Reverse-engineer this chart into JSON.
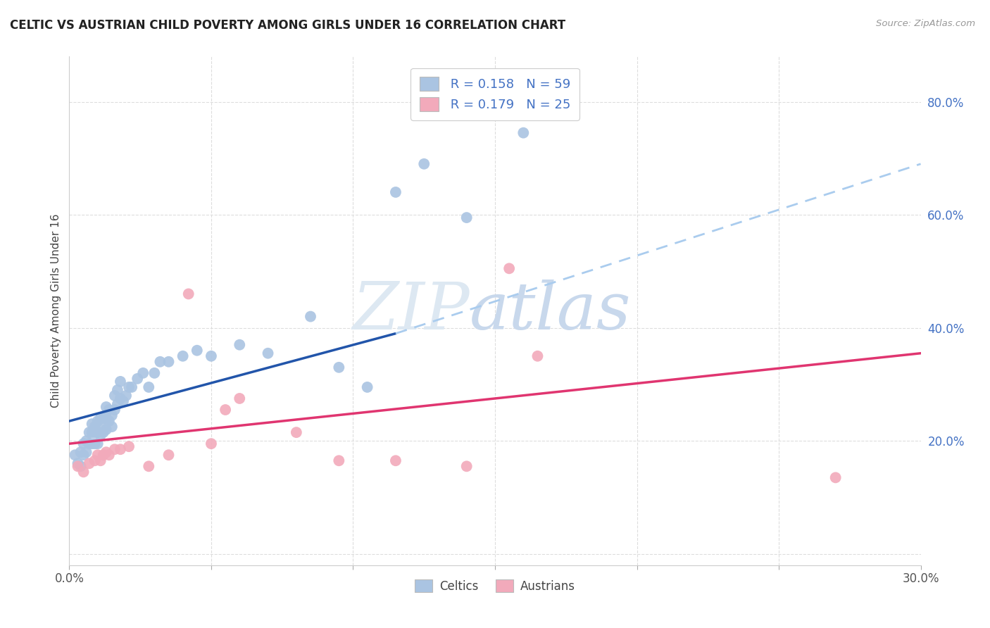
{
  "title": "CELTIC VS AUSTRIAN CHILD POVERTY AMONG GIRLS UNDER 16 CORRELATION CHART",
  "source": "Source: ZipAtlas.com",
  "ylabel": "Child Poverty Among Girls Under 16",
  "xlim": [
    0.0,
    0.3
  ],
  "ylim": [
    -0.02,
    0.88
  ],
  "celtics_R": 0.158,
  "celtics_N": 59,
  "austrians_R": 0.179,
  "austrians_N": 25,
  "celtic_color": "#aac4e2",
  "austrian_color": "#f2aabb",
  "celtic_line_color": "#2255aa",
  "austrian_line_color": "#e03570",
  "dashed_line_color": "#aaccee",
  "grid_color": "#dddddd",
  "watermark_zip": "ZIP",
  "watermark_atlas": "atlas",
  "celtics_x": [
    0.002,
    0.003,
    0.004,
    0.004,
    0.005,
    0.005,
    0.006,
    0.006,
    0.007,
    0.007,
    0.008,
    0.008,
    0.008,
    0.009,
    0.009,
    0.009,
    0.01,
    0.01,
    0.01,
    0.011,
    0.011,
    0.011,
    0.012,
    0.012,
    0.013,
    0.013,
    0.013,
    0.014,
    0.014,
    0.015,
    0.015,
    0.016,
    0.016,
    0.017,
    0.017,
    0.018,
    0.018,
    0.019,
    0.02,
    0.021,
    0.022,
    0.024,
    0.026,
    0.028,
    0.03,
    0.032,
    0.035,
    0.04,
    0.045,
    0.05,
    0.06,
    0.07,
    0.085,
    0.095,
    0.105,
    0.115,
    0.125,
    0.14,
    0.16
  ],
  "celtics_y": [
    0.175,
    0.16,
    0.155,
    0.18,
    0.175,
    0.195,
    0.18,
    0.2,
    0.195,
    0.215,
    0.195,
    0.215,
    0.23,
    0.195,
    0.215,
    0.225,
    0.195,
    0.215,
    0.235,
    0.21,
    0.225,
    0.24,
    0.215,
    0.24,
    0.22,
    0.24,
    0.26,
    0.235,
    0.255,
    0.225,
    0.245,
    0.255,
    0.28,
    0.265,
    0.29,
    0.275,
    0.305,
    0.27,
    0.28,
    0.295,
    0.295,
    0.31,
    0.32,
    0.295,
    0.32,
    0.34,
    0.34,
    0.35,
    0.36,
    0.35,
    0.37,
    0.355,
    0.42,
    0.33,
    0.295,
    0.64,
    0.69,
    0.595,
    0.745
  ],
  "austrians_x": [
    0.003,
    0.005,
    0.007,
    0.009,
    0.01,
    0.011,
    0.012,
    0.013,
    0.014,
    0.016,
    0.018,
    0.021,
    0.028,
    0.035,
    0.042,
    0.05,
    0.055,
    0.06,
    0.08,
    0.095,
    0.115,
    0.14,
    0.155,
    0.165,
    0.27
  ],
  "austrians_y": [
    0.155,
    0.145,
    0.16,
    0.165,
    0.175,
    0.165,
    0.175,
    0.18,
    0.175,
    0.185,
    0.185,
    0.19,
    0.155,
    0.175,
    0.46,
    0.195,
    0.255,
    0.275,
    0.215,
    0.165,
    0.165,
    0.155,
    0.505,
    0.35,
    0.135
  ],
  "celtic_trend_x": [
    0.0,
    0.115
  ],
  "celtic_trend_y": [
    0.235,
    0.39
  ],
  "dashed_trend_x": [
    0.115,
    0.3
  ],
  "dashed_trend_y": [
    0.39,
    0.69
  ],
  "austrian_trend_x": [
    0.0,
    0.3
  ],
  "austrian_trend_y": [
    0.195,
    0.355
  ]
}
